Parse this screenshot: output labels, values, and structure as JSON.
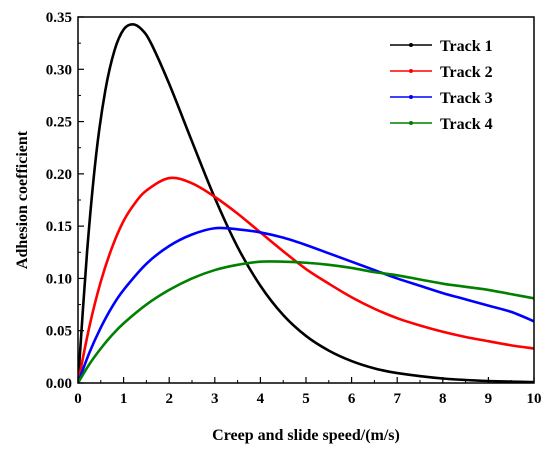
{
  "chart_data": {
    "type": "line",
    "xlabel": "Creep and slide speed/(m/s)",
    "ylabel": "Adhesion coefficient",
    "xlim": [
      0,
      10
    ],
    "ylim": [
      0,
      0.35
    ],
    "x_ticks": [
      "0",
      "1",
      "2",
      "3",
      "4",
      "5",
      "6",
      "7",
      "8",
      "9",
      "10"
    ],
    "y_ticks": [
      "0.00",
      "0.05",
      "0.10",
      "0.15",
      "0.20",
      "0.25",
      "0.30",
      "0.35"
    ],
    "grid": false,
    "legend_position": "top-right",
    "series": [
      {
        "name": "Track 1",
        "color": "#000000",
        "x": [
          0,
          0.2,
          0.4,
          0.6,
          0.8,
          1.0,
          1.2,
          1.4,
          1.6,
          2.0,
          2.5,
          3.0,
          3.5,
          4.0,
          4.5,
          5.0,
          5.5,
          6.0,
          6.5,
          7.0,
          8.0,
          9.0,
          10.0
        ],
        "y": [
          0,
          0.126,
          0.219,
          0.28,
          0.318,
          0.338,
          0.343,
          0.338,
          0.325,
          0.286,
          0.231,
          0.177,
          0.13,
          0.093,
          0.065,
          0.045,
          0.031,
          0.021,
          0.014,
          0.0095,
          0.0043,
          0.0019,
          0.0009
        ]
      },
      {
        "name": "Track 2",
        "color": "#ff0000",
        "x": [
          0,
          0.25,
          0.5,
          0.75,
          1.0,
          1.25,
          1.5,
          2.0,
          2.5,
          3.0,
          3.5,
          4.0,
          4.5,
          5.0,
          5.5,
          6.0,
          6.5,
          7.0,
          7.5,
          8.0,
          8.5,
          9.0,
          9.5,
          10.0
        ],
        "y": [
          0,
          0.054,
          0.097,
          0.13,
          0.155,
          0.172,
          0.184,
          0.196,
          0.191,
          0.178,
          0.162,
          0.144,
          0.126,
          0.109,
          0.095,
          0.082,
          0.071,
          0.062,
          0.055,
          0.049,
          0.044,
          0.04,
          0.036,
          0.033
        ]
      },
      {
        "name": "Track 3",
        "color": "#0000ff",
        "x": [
          0,
          0.25,
          0.5,
          0.75,
          1.0,
          1.5,
          2.0,
          2.5,
          3.0,
          3.5,
          4.0,
          4.5,
          5.0,
          5.5,
          6.0,
          6.5,
          7.0,
          7.5,
          8.0,
          8.5,
          9.0,
          9.5,
          10.0
        ],
        "y": [
          0,
          0.029,
          0.053,
          0.073,
          0.089,
          0.114,
          0.131,
          0.142,
          0.148,
          0.147,
          0.144,
          0.139,
          0.132,
          0.124,
          0.116,
          0.108,
          0.1,
          0.093,
          0.086,
          0.08,
          0.074,
          0.068,
          0.059
        ]
      },
      {
        "name": "Track 4",
        "color": "#008000",
        "x": [
          0,
          0.25,
          0.5,
          0.75,
          1.0,
          1.5,
          2.0,
          2.5,
          3.0,
          3.5,
          4.0,
          4.5,
          5.0,
          5.5,
          6.0,
          6.5,
          7.0,
          7.5,
          8.0,
          8.5,
          9.0,
          9.5,
          10.0
        ],
        "y": [
          0,
          0.018,
          0.033,
          0.046,
          0.057,
          0.075,
          0.089,
          0.1,
          0.108,
          0.113,
          0.116,
          0.116,
          0.115,
          0.113,
          0.11,
          0.106,
          0.103,
          0.099,
          0.095,
          0.092,
          0.089,
          0.085,
          0.081
        ]
      }
    ]
  }
}
